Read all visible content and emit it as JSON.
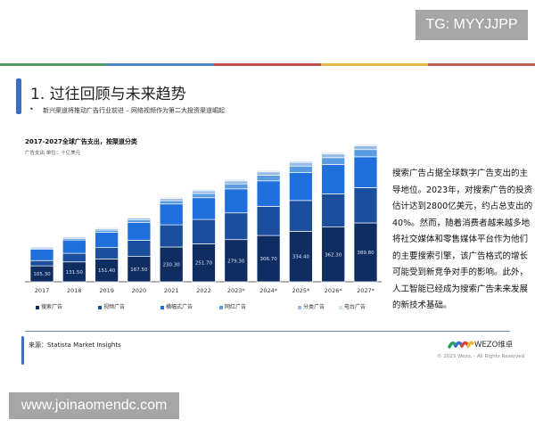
{
  "watermark_top": "TG: MYYJJPP",
  "watermark_bottom": "www.joinaomendc.com",
  "stripe_colors": [
    "#4f9a5f",
    "#4a86c6",
    "#c0504d",
    "#e8b84a",
    "#c0604d"
  ],
  "slide": {
    "title": "1. 过往回顾与未来趋势",
    "bullet": "•",
    "subtitle": "新兴渠道将推动广告行业前进 – 网络视频作为第二大投资渠道崛起",
    "side_text": "搜索广告占据全球数字广告支出的主导地位。2023年，对搜索广告的投资估计达到2800亿美元，约占总支出的40%。然而，随着消费者越来越多地将社交媒体和零售媒体平台作为他们的主要搜索引擎，该广告格式的增长可能受到新竞争对手的影响。此外，人工智能已经成为搜索广告未来发展的新技术基础。",
    "source": "来源：Statista Market Insights",
    "logo_text": "WEZO维卓",
    "copyright": "© 2023 Wezo. - All Rights Reserved"
  },
  "chart_data": {
    "type": "bar",
    "stacked": true,
    "title": "2017-2027全球广告支出，按渠道分类",
    "subtitle": "广告支出 单位：十亿美元",
    "categories": [
      "2017",
      "2018",
      "2019",
      "2020",
      "2021",
      "2022",
      "2023*",
      "2024*",
      "2025*",
      "2026*",
      "2027*"
    ],
    "ylim": [
      0,
      1000
    ],
    "grid": false,
    "legend_position": "bottom",
    "series": [
      {
        "name": "搜索广告",
        "color": "#0f2d60",
        "values": [
          105.3,
          131.5,
          151.4,
          167.5,
          230.3,
          251.7,
          279.3,
          306.7,
          334.4,
          362.3,
          389.8
        ],
        "labeled": true
      },
      {
        "name": "视频广告",
        "color": "#1b4f9e",
        "values": [
          35,
          57,
          75,
          108,
          147,
          161,
          177,
          193,
          204,
          220,
          234
        ]
      },
      {
        "name": "横幅式广告",
        "color": "#1f6fdc",
        "values": [
          75,
          88,
          102,
          118,
          138,
          144,
          159,
          169,
          185,
          195,
          204
        ]
      },
      {
        "name": "网红广告",
        "color": "#5b9be0",
        "values": [
          8,
          11,
          14,
          16,
          22,
          28,
          33,
          37,
          43,
          45,
          48
        ]
      },
      {
        "name": "分类广告",
        "color": "#94bbe6",
        "values": [
          6,
          8,
          10,
          12,
          15,
          18,
          20,
          22,
          24,
          24,
          25
        ]
      },
      {
        "name": "电台广告",
        "color": "#d3e2f3",
        "values": [
          4,
          5,
          6,
          7,
          8,
          9,
          10,
          10,
          10,
          10,
          10
        ]
      }
    ]
  }
}
